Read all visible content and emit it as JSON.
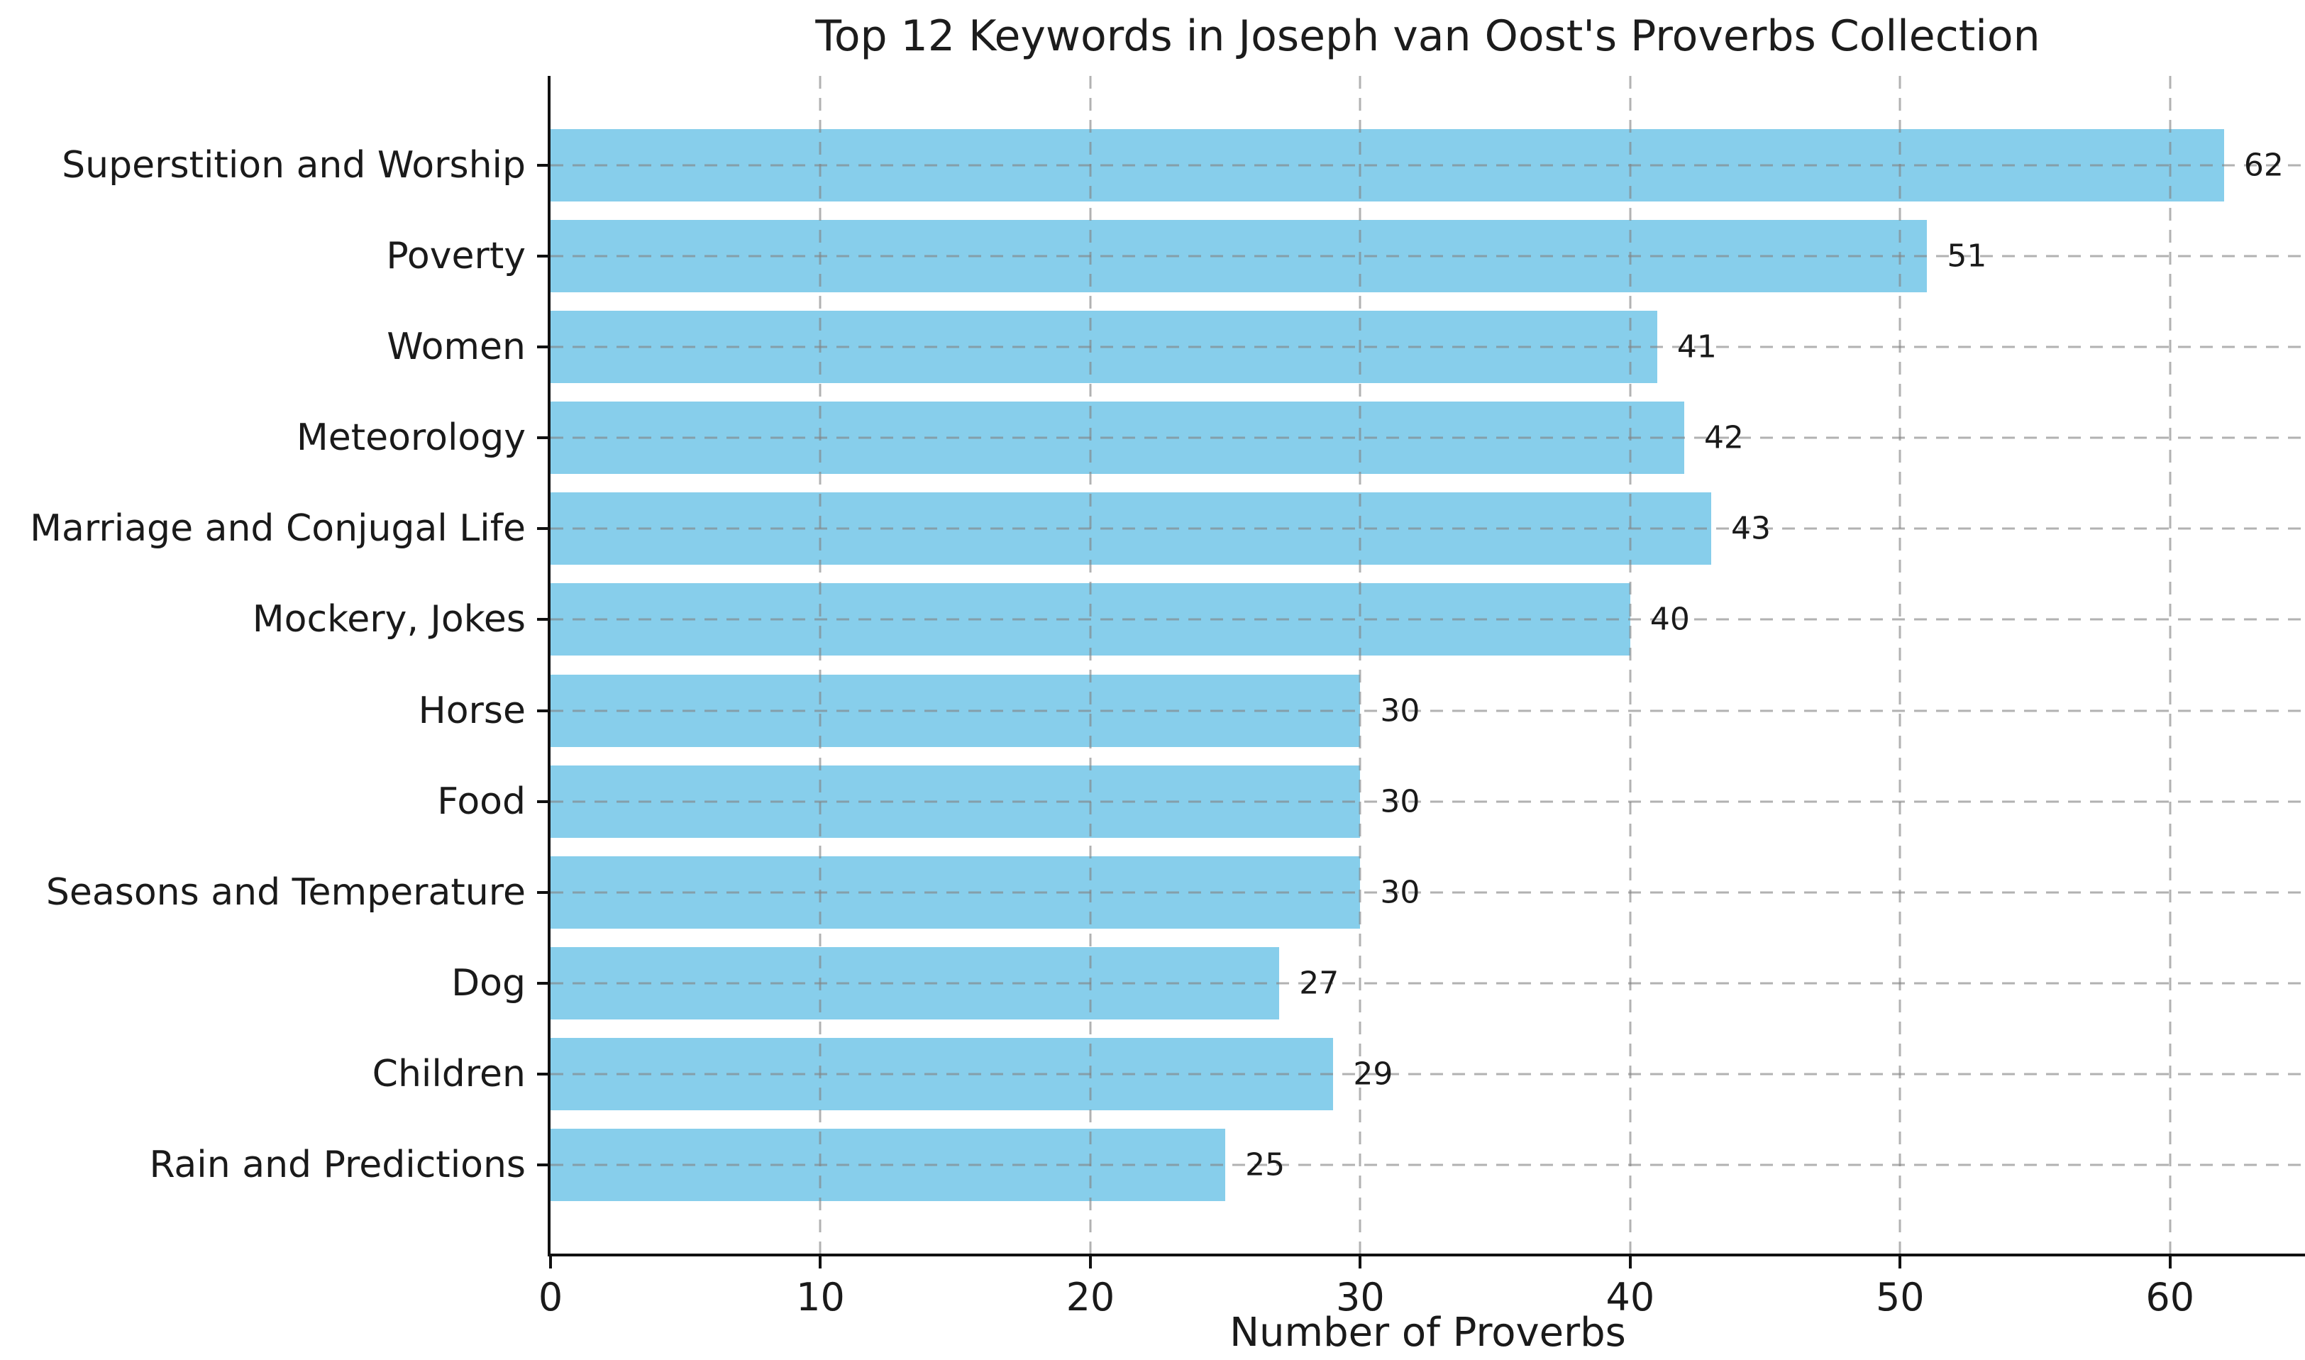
{
  "chart_data": {
    "type": "bar",
    "orientation": "horizontal",
    "title": "Top 12 Keywords in Joseph van Oost's Proverbs Collection",
    "xlabel": "Number of Proverbs",
    "ylabel": "",
    "categories": [
      "Superstition and Worship",
      "Poverty",
      "Women",
      "Meteorology",
      "Marriage and Conjugal Life",
      "Mockery, Jokes",
      "Horse",
      "Food",
      "Seasons and Temperature",
      "Dog",
      "Children",
      "Rain and Predictions"
    ],
    "values": [
      62,
      51,
      41,
      42,
      43,
      40,
      30,
      30,
      30,
      27,
      29,
      25
    ],
    "data_labels": [
      "62",
      "51",
      "41",
      "42",
      "43",
      "40",
      "30",
      "30",
      "30",
      "27",
      "29",
      "25"
    ],
    "xlim": [
      0,
      65
    ],
    "xticks": [
      0,
      10,
      20,
      30,
      40,
      50,
      60
    ],
    "grid": true,
    "grid_style": "dashed",
    "legend": null,
    "colors": {
      "bar": "#87CEEB",
      "grid": "#b0b0b0",
      "spine": "#111111",
      "text": "#1a1a1a"
    }
  }
}
